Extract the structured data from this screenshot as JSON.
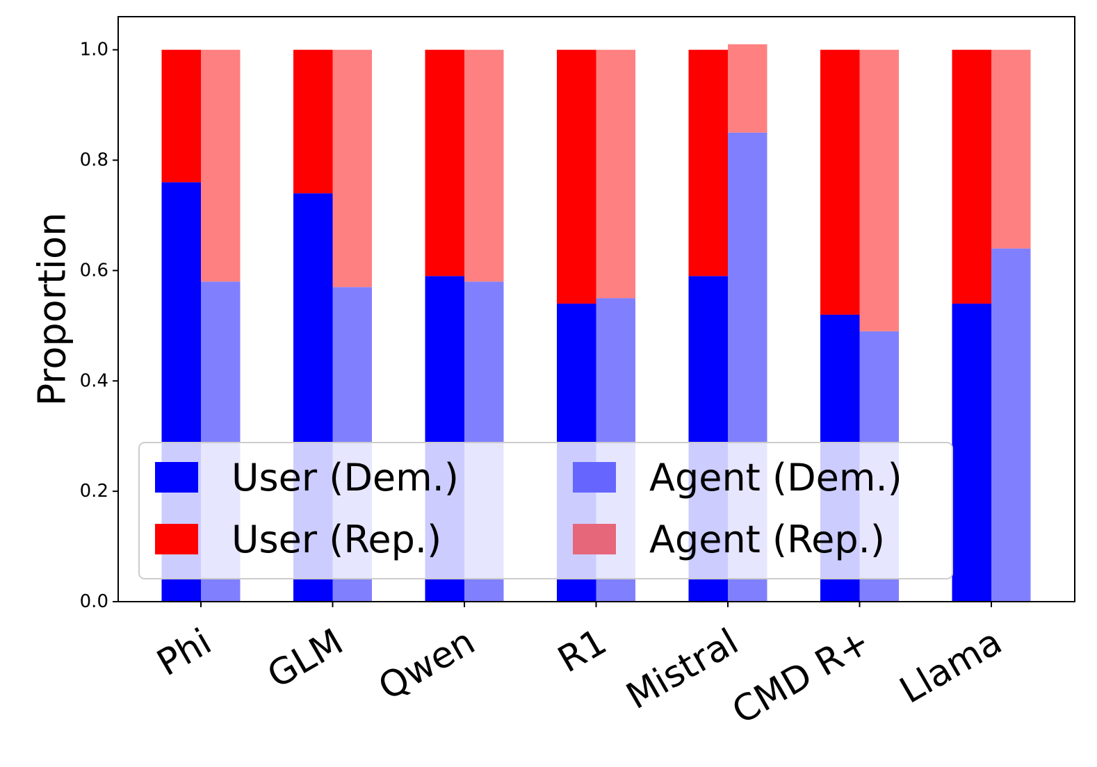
{
  "chart_data": {
    "type": "bar",
    "subtype": "grouped-stacked",
    "title": "",
    "xlabel": "",
    "ylabel": "Proportion",
    "ylim": [
      0,
      1.06
    ],
    "yticks": [
      "0.0",
      "0.2",
      "0.4",
      "0.6",
      "0.8",
      "1.0"
    ],
    "categories": [
      "Phi",
      "GLM",
      "Qwen",
      "R1",
      "Mistral",
      "CMD R+",
      "Llama"
    ],
    "groups": [
      {
        "name": "User",
        "color_dem": "#0000ff",
        "color_rep": "#ff0000",
        "dem": [
          0.76,
          0.74,
          0.59,
          0.54,
          0.59,
          0.52,
          0.54
        ],
        "rep": [
          0.24,
          0.26,
          0.41,
          0.46,
          0.41,
          0.48,
          0.46
        ]
      },
      {
        "name": "Agent",
        "color_dem": "#8080ff",
        "color_rep": "#ff8080",
        "dem": [
          0.58,
          0.57,
          0.58,
          0.55,
          0.85,
          0.49,
          0.64
        ],
        "rep": [
          0.42,
          0.43,
          0.42,
          0.45,
          0.16,
          0.51,
          0.36
        ]
      }
    ],
    "legend": {
      "position": "lower-center",
      "entries": [
        {
          "label": "User (Dem.)",
          "color": "#0000ff"
        },
        {
          "label": "Agent (Dem.)",
          "color": "#6666ff"
        },
        {
          "label": "User (Rep.)",
          "color": "#ff0000"
        },
        {
          "label": "Agent (Rep.)",
          "color": "#e6667a"
        }
      ]
    },
    "grid": false
  }
}
